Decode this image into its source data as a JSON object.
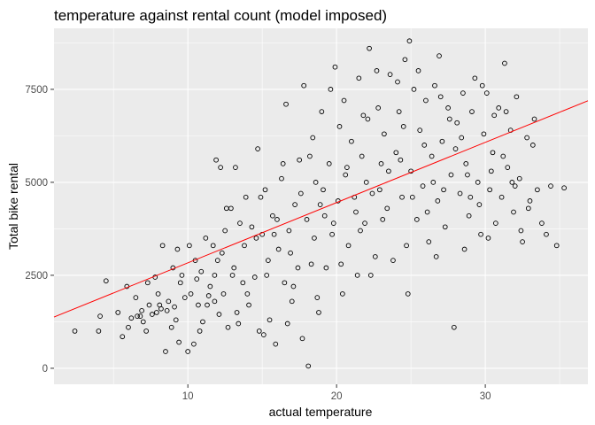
{
  "chart_data": {
    "type": "scatter",
    "title": "temperature against rental count (model imposed)",
    "xlabel": "actual temperature",
    "ylabel": "Total bike rental",
    "xlim": [
      1.0,
      36.9
    ],
    "ylim": [
      -430,
      9140
    ],
    "x_ticks": [
      10,
      20,
      30
    ],
    "y_ticks": [
      0,
      2500,
      5000,
      7500
    ],
    "x_tick_labels": [
      "10",
      "20",
      "30"
    ],
    "y_tick_labels": [
      "0",
      "2500",
      "5000",
      "7500"
    ],
    "grid": true,
    "colors": {
      "panel": "#ebebeb",
      "grid": "#ffffff",
      "points": "#000000",
      "model_line": "#ff0000"
    },
    "model_line": {
      "type": "linear",
      "intercept": 1215,
      "slope": 162
    },
    "series": [
      {
        "marker": "open-circle",
        "points": [
          [
            2.4,
            1000
          ],
          [
            4.0,
            1000
          ],
          [
            4.1,
            1400
          ],
          [
            4.5,
            2350
          ],
          [
            5.3,
            1500
          ],
          [
            5.6,
            850
          ],
          [
            5.9,
            2200
          ],
          [
            6.2,
            1350
          ],
          [
            6.5,
            1900
          ],
          [
            6.6,
            1400
          ],
          [
            6.8,
            1400
          ],
          [
            6.9,
            1550
          ],
          [
            7.0,
            1250
          ],
          [
            7.2,
            1000
          ],
          [
            7.4,
            1700
          ],
          [
            7.6,
            1450
          ],
          [
            7.8,
            2450
          ],
          [
            7.9,
            1500
          ],
          [
            8.1,
            1700
          ],
          [
            8.2,
            1600
          ],
          [
            8.3,
            3300
          ],
          [
            8.5,
            450
          ],
          [
            8.6,
            1550
          ],
          [
            8.7,
            1800
          ],
          [
            8.9,
            1100
          ],
          [
            9.0,
            2700
          ],
          [
            9.1,
            1650
          ],
          [
            9.3,
            3200
          ],
          [
            9.4,
            700
          ],
          [
            9.6,
            2500
          ],
          [
            9.8,
            1900
          ],
          [
            10.0,
            450
          ],
          [
            10.1,
            3300
          ],
          [
            10.2,
            2000
          ],
          [
            10.4,
            650
          ],
          [
            10.6,
            2400
          ],
          [
            10.7,
            1700
          ],
          [
            10.9,
            2600
          ],
          [
            11.0,
            1250
          ],
          [
            11.2,
            3500
          ],
          [
            11.3,
            1700
          ],
          [
            11.5,
            2200
          ],
          [
            11.7,
            3300
          ],
          [
            11.8,
            1800
          ],
          [
            11.9,
            5600
          ],
          [
            12.0,
            2900
          ],
          [
            12.1,
            1450
          ],
          [
            12.2,
            5400
          ],
          [
            12.4,
            2000
          ],
          [
            12.5,
            3700
          ],
          [
            12.7,
            1100
          ],
          [
            12.9,
            4300
          ],
          [
            13.0,
            2500
          ],
          [
            13.2,
            5400
          ],
          [
            13.3,
            1500
          ],
          [
            13.5,
            3900
          ],
          [
            13.7,
            2300
          ],
          [
            13.9,
            4600
          ],
          [
            14.1,
            1700
          ],
          [
            14.3,
            3800
          ],
          [
            14.5,
            2450
          ],
          [
            14.7,
            5900
          ],
          [
            14.8,
            1000
          ],
          [
            15.0,
            3600
          ],
          [
            15.2,
            4800
          ],
          [
            15.4,
            2900
          ],
          [
            15.5,
            1300
          ],
          [
            15.7,
            4100
          ],
          [
            15.9,
            650
          ],
          [
            16.1,
            3200
          ],
          [
            16.3,
            5100
          ],
          [
            16.5,
            2300
          ],
          [
            16.6,
            7100
          ],
          [
            16.8,
            3700
          ],
          [
            17.0,
            1800
          ],
          [
            17.2,
            4400
          ],
          [
            17.4,
            2700
          ],
          [
            17.5,
            5600
          ],
          [
            17.7,
            800
          ],
          [
            17.8,
            7600
          ],
          [
            18.0,
            4000
          ],
          [
            18.1,
            60
          ],
          [
            18.3,
            2800
          ],
          [
            18.4,
            6200
          ],
          [
            18.6,
            5000
          ],
          [
            18.8,
            1500
          ],
          [
            19.0,
            6900
          ],
          [
            19.2,
            4100
          ],
          [
            19.3,
            2700
          ],
          [
            19.5,
            5500
          ],
          [
            19.7,
            3600
          ],
          [
            19.9,
            8100
          ],
          [
            20.1,
            4500
          ],
          [
            20.3,
            2800
          ],
          [
            20.5,
            7200
          ],
          [
            20.6,
            5200
          ],
          [
            20.8,
            3300
          ],
          [
            21.0,
            6100
          ],
          [
            21.2,
            4600
          ],
          [
            21.4,
            2500
          ],
          [
            21.5,
            7800
          ],
          [
            21.7,
            5700
          ],
          [
            21.9,
            3900
          ],
          [
            22.1,
            6700
          ],
          [
            22.2,
            8600
          ],
          [
            22.4,
            4700
          ],
          [
            22.6,
            3000
          ],
          [
            22.8,
            7000
          ],
          [
            23.0,
            5500
          ],
          [
            23.2,
            6300
          ],
          [
            23.4,
            4300
          ],
          [
            23.6,
            7900
          ],
          [
            23.8,
            2900
          ],
          [
            24.0,
            5800
          ],
          [
            24.2,
            6900
          ],
          [
            24.4,
            4600
          ],
          [
            24.6,
            8300
          ],
          [
            24.8,
            2000
          ],
          [
            24.9,
            8800
          ],
          [
            25.0,
            5300
          ],
          [
            25.2,
            7500
          ],
          [
            25.4,
            4000
          ],
          [
            25.6,
            6400
          ],
          [
            25.8,
            4900
          ],
          [
            26.0,
            7200
          ],
          [
            26.2,
            3400
          ],
          [
            26.4,
            5700
          ],
          [
            26.6,
            7600
          ],
          [
            26.8,
            4500
          ],
          [
            26.9,
            8400
          ],
          [
            27.1,
            6100
          ],
          [
            27.3,
            3800
          ],
          [
            27.5,
            7000
          ],
          [
            27.7,
            5200
          ],
          [
            27.9,
            1100
          ],
          [
            28.1,
            6600
          ],
          [
            28.3,
            4700
          ],
          [
            28.5,
            7400
          ],
          [
            28.7,
            5500
          ],
          [
            28.9,
            4100
          ],
          [
            29.1,
            6900
          ],
          [
            29.3,
            7800
          ],
          [
            29.5,
            5000
          ],
          [
            29.7,
            3600
          ],
          [
            29.9,
            6300
          ],
          [
            30.1,
            7400
          ],
          [
            30.3,
            4800
          ],
          [
            30.5,
            5800
          ],
          [
            30.7,
            3900
          ],
          [
            30.9,
            7000
          ],
          [
            31.1,
            4600
          ],
          [
            31.3,
            8200
          ],
          [
            31.5,
            5400
          ],
          [
            31.7,
            6400
          ],
          [
            31.9,
            4200
          ],
          [
            32.1,
            7300
          ],
          [
            32.3,
            5100
          ],
          [
            32.5,
            3400
          ],
          [
            32.8,
            6200
          ],
          [
            33.0,
            4500
          ],
          [
            33.3,
            6700
          ],
          [
            33.5,
            4800
          ],
          [
            33.8,
            3900
          ],
          [
            34.1,
            3600
          ],
          [
            34.4,
            4900
          ],
          [
            34.8,
            3300
          ],
          [
            35.3,
            4850
          ],
          [
            9.5,
            2300
          ],
          [
            10.5,
            2900
          ],
          [
            11.4,
            1950
          ],
          [
            12.3,
            3100
          ],
          [
            13.1,
            2700
          ],
          [
            13.8,
            3300
          ],
          [
            14.6,
            3500
          ],
          [
            15.3,
            2500
          ],
          [
            16.0,
            4000
          ],
          [
            16.9,
            3100
          ],
          [
            17.6,
            4700
          ],
          [
            18.5,
            3500
          ],
          [
            19.1,
            4800
          ],
          [
            19.8,
            3900
          ],
          [
            20.7,
            5400
          ],
          [
            21.3,
            4200
          ],
          [
            22.0,
            5000
          ],
          [
            22.9,
            4800
          ],
          [
            23.5,
            5300
          ],
          [
            24.3,
            5600
          ],
          [
            25.1,
            4600
          ],
          [
            25.9,
            6000
          ],
          [
            26.5,
            5000
          ],
          [
            27.2,
            4800
          ],
          [
            28.0,
            5900
          ],
          [
            28.8,
            5200
          ],
          [
            29.6,
            4400
          ],
          [
            30.4,
            5300
          ],
          [
            31.2,
            5700
          ],
          [
            32.0,
            4900
          ],
          [
            32.9,
            4300
          ],
          [
            8.0,
            2000
          ],
          [
            11.8,
            2500
          ],
          [
            14.0,
            2000
          ],
          [
            15.8,
            3600
          ],
          [
            17.1,
            2200
          ],
          [
            18.9,
            4400
          ],
          [
            20.2,
            6500
          ],
          [
            21.6,
            3700
          ],
          [
            23.1,
            4000
          ],
          [
            24.5,
            6500
          ],
          [
            26.1,
            4200
          ],
          [
            27.6,
            6700
          ],
          [
            29.0,
            4600
          ],
          [
            30.6,
            6800
          ],
          [
            31.8,
            5000
          ],
          [
            12.6,
            4300
          ],
          [
            14.9,
            4600
          ],
          [
            16.4,
            5500
          ],
          [
            18.2,
            5700
          ],
          [
            19.6,
            7500
          ],
          [
            21.8,
            6800
          ],
          [
            22.7,
            8000
          ],
          [
            24.1,
            7700
          ],
          [
            25.5,
            8000
          ],
          [
            27.0,
            7300
          ],
          [
            28.4,
            6200
          ],
          [
            29.8,
            7600
          ],
          [
            31.4,
            6900
          ],
          [
            33.2,
            6000
          ],
          [
            6.0,
            1100
          ],
          [
            7.3,
            2300
          ],
          [
            9.2,
            1300
          ],
          [
            10.8,
            1000
          ],
          [
            13.4,
            1200
          ],
          [
            15.1,
            900
          ],
          [
            16.7,
            1200
          ],
          [
            18.7,
            1900
          ],
          [
            20.4,
            2000
          ],
          [
            22.3,
            2500
          ],
          [
            24.7,
            3300
          ],
          [
            26.7,
            3000
          ],
          [
            28.6,
            3200
          ],
          [
            30.2,
            3500
          ],
          [
            32.4,
            3700
          ]
        ]
      }
    ]
  }
}
